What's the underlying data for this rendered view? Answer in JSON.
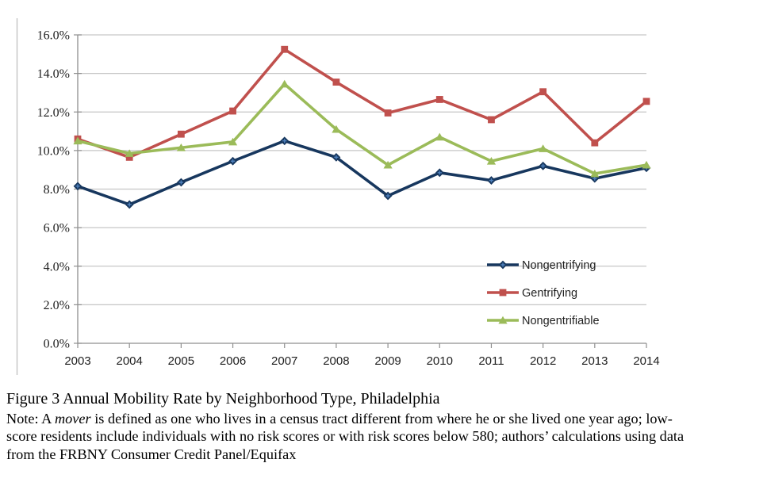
{
  "chart_data": {
    "type": "line",
    "x_labels": [
      "2003",
      "2004",
      "2005",
      "2006",
      "2007",
      "2008",
      "2009",
      "2010",
      "2011",
      "2012",
      "2013",
      "2014"
    ],
    "y_tick_labels": [
      "0.0%",
      "2.0%",
      "4.0%",
      "6.0%",
      "8.0%",
      "10.0%",
      "12.0%",
      "14.0%",
      "16.0%"
    ],
    "ylim": [
      0,
      16
    ],
    "ytick_step": 2,
    "grid": true,
    "legend_position": "inside-right",
    "series": [
      {
        "name": "Nongentrifying",
        "color": "#17375E",
        "marker": "diamond",
        "marker_accent": "#4F81BD",
        "values": [
          8.15,
          7.2,
          8.35,
          9.45,
          10.5,
          9.65,
          7.65,
          8.85,
          8.45,
          9.2,
          8.55,
          9.1
        ]
      },
      {
        "name": "Gentrifying",
        "color": "#C0504D",
        "marker": "square",
        "values": [
          10.6,
          9.65,
          10.85,
          12.05,
          15.25,
          13.55,
          11.95,
          12.65,
          11.6,
          13.05,
          10.4,
          12.55
        ]
      },
      {
        "name": "Nongentrifiable",
        "color": "#9BBB59",
        "marker": "triangle",
        "values": [
          10.5,
          9.85,
          10.15,
          10.45,
          13.45,
          11.1,
          9.25,
          10.7,
          9.45,
          10.1,
          8.8,
          9.25
        ]
      }
    ]
  },
  "colors": {
    "gridline": "#C6C6C6",
    "axis": "#8F8F8F",
    "left_border": "#BFBFBF",
    "tick_text": "#1F1F1F"
  },
  "caption": {
    "title": "Figure 3 Annual Mobility Rate by Neighborhood Type, Philadelphia",
    "note_line1_prefix": "Note: A ",
    "note_line1_italic": "mover",
    "note_line1_rest": " is defined as one who lives in a census tract different from where he or she lived one year ago; low-",
    "note_line2": "score residents include individuals with no risk scores or with risk scores below 580; authors’ calculations using data",
    "note_line3": "from the FRBNY Consumer Credit Panel/Equifax"
  }
}
